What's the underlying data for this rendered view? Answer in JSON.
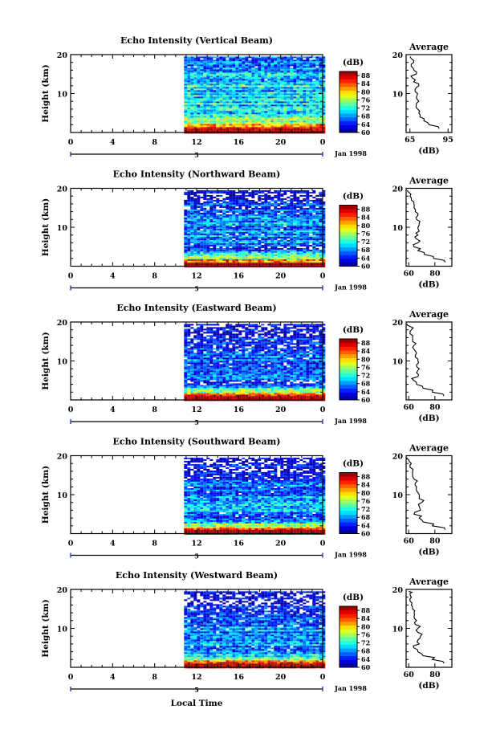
{
  "figure_xlabel": "Local Time",
  "chart_data": [
    {
      "type": "heatmap",
      "title": "Echo Intensity (Vertical Beam)",
      "ylabel": "Height (km)",
      "xlim": [
        0,
        24
      ],
      "ylim": [
        0,
        20
      ],
      "x_ticks": [
        "0",
        "4",
        "8",
        "12",
        "16",
        "20",
        "0"
      ],
      "y_ticks": [
        "10",
        "20"
      ],
      "date_label": "5",
      "month_label": "Jan 1998",
      "data_start_hour": 10.8,
      "data_top_km": 19.5,
      "colorbar": {
        "label": "(dB)",
        "ticks": [
          "88",
          "84",
          "80",
          "76",
          "72",
          "68",
          "64",
          "60"
        ],
        "min": 60,
        "max": 90
      },
      "profile": {
        "title": "Average",
        "xlabel": "(dB)",
        "x_ticks": [
          "65",
          "95"
        ],
        "xlim": [
          62,
          98
        ],
        "y_ticks": [
          "10",
          "20"
        ],
        "height_km": [
          1,
          2,
          3,
          4,
          5,
          6,
          7,
          8,
          9,
          10,
          11,
          12,
          13,
          14,
          15,
          16,
          17,
          18,
          19
        ],
        "values_db": [
          88,
          80,
          76,
          73,
          72,
          71,
          70,
          72,
          70,
          71,
          69,
          72,
          68,
          67,
          70,
          68,
          66,
          68,
          66
        ]
      }
    },
    {
      "type": "heatmap",
      "title": "Echo Intensity (Northward Beam)",
      "ylabel": "Height (km)",
      "xlim": [
        0,
        24
      ],
      "ylim": [
        0,
        20
      ],
      "x_ticks": [
        "0",
        "4",
        "8",
        "12",
        "16",
        "20",
        "0"
      ],
      "y_ticks": [
        "10",
        "20"
      ],
      "date_label": "5",
      "month_label": "Jan 1998",
      "data_start_hour": 10.8,
      "data_top_km": 19.5,
      "colorbar": {
        "label": "(dB)",
        "ticks": [
          "88",
          "84",
          "80",
          "76",
          "72",
          "68",
          "64",
          "60"
        ],
        "min": 60,
        "max": 90
      },
      "profile": {
        "title": "Average",
        "xlabel": "(dB)",
        "x_ticks": [
          "60",
          "80"
        ],
        "xlim": [
          58,
          93
        ],
        "y_ticks": [
          "10",
          "20"
        ],
        "height_km": [
          1,
          2,
          3,
          4,
          5,
          6,
          7,
          8,
          9,
          10,
          11,
          12,
          13,
          14,
          15,
          16,
          17,
          18,
          19
        ],
        "values_db": [
          88,
          79,
          72,
          67,
          64,
          67,
          66,
          67,
          68,
          67,
          68,
          66,
          67,
          65,
          64,
          64,
          62,
          61,
          60
        ]
      }
    },
    {
      "type": "heatmap",
      "title": "Echo Intensity (Eastward Beam)",
      "ylabel": "Height (km)",
      "xlim": [
        0,
        24
      ],
      "ylim": [
        0,
        20
      ],
      "x_ticks": [
        "0",
        "4",
        "8",
        "12",
        "16",
        "20",
        "0"
      ],
      "y_ticks": [
        "10",
        "20"
      ],
      "date_label": "5",
      "month_label": "Jan 1998",
      "data_start_hour": 10.8,
      "data_top_km": 19.5,
      "colorbar": {
        "label": "(dB)",
        "ticks": [
          "88",
          "84",
          "80",
          "76",
          "72",
          "68",
          "64",
          "60"
        ],
        "min": 60,
        "max": 90
      },
      "profile": {
        "title": "Average",
        "xlabel": "(dB)",
        "x_ticks": [
          "60",
          "80"
        ],
        "xlim": [
          58,
          93
        ],
        "y_ticks": [
          "10",
          "20"
        ],
        "height_km": [
          1,
          2,
          3,
          4,
          5,
          6,
          7,
          8,
          9,
          10,
          11,
          12,
          13,
          14,
          15,
          16,
          17,
          18,
          19
        ],
        "values_db": [
          87,
          78,
          71,
          66,
          64,
          67,
          66,
          68,
          66,
          67,
          65,
          66,
          64,
          64,
          63,
          63,
          61,
          62,
          60
        ]
      }
    },
    {
      "type": "heatmap",
      "title": "Echo Intensity (Southward Beam)",
      "ylabel": "Height (km)",
      "xlim": [
        0,
        24
      ],
      "ylim": [
        0,
        20
      ],
      "x_ticks": [
        "0",
        "4",
        "8",
        "12",
        "16",
        "20",
        "0"
      ],
      "y_ticks": [
        "10",
        "20"
      ],
      "date_label": "5",
      "month_label": "Jan 1998",
      "data_start_hour": 10.8,
      "data_top_km": 19.5,
      "colorbar": {
        "label": "(dB)",
        "ticks": [
          "88",
          "84",
          "80",
          "76",
          "72",
          "68",
          "64",
          "60"
        ],
        "min": 60,
        "max": 90
      },
      "profile": {
        "title": "Average",
        "xlabel": "(dB)",
        "x_ticks": [
          "60",
          "80"
        ],
        "xlim": [
          58,
          93
        ],
        "y_ticks": [
          "10",
          "20"
        ],
        "height_km": [
          1,
          2,
          3,
          4,
          5,
          6,
          7,
          8,
          9,
          10,
          11,
          12,
          13,
          14,
          15,
          16,
          17,
          18,
          19
        ],
        "values_db": [
          88,
          78,
          71,
          68,
          64,
          69,
          68,
          70,
          68,
          68,
          66,
          66,
          65,
          64,
          63,
          63,
          61,
          62,
          60
        ]
      }
    },
    {
      "type": "heatmap",
      "title": "Echo Intensity (Westward Beam)",
      "ylabel": "Height (km)",
      "xlim": [
        0,
        24
      ],
      "ylim": [
        0,
        20
      ],
      "x_ticks": [
        "0",
        "4",
        "8",
        "12",
        "16",
        "20",
        "0"
      ],
      "y_ticks": [
        "10",
        "20"
      ],
      "date_label": "5",
      "month_label": "Jan 1998",
      "data_start_hour": 10.8,
      "data_top_km": 19.5,
      "colorbar": {
        "label": "(dB)",
        "ticks": [
          "88",
          "84",
          "80",
          "76",
          "72",
          "68",
          "64",
          "60"
        ],
        "min": 60,
        "max": 90
      },
      "profile": {
        "title": "Average",
        "xlabel": "(dB)",
        "x_ticks": [
          "60",
          "80"
        ],
        "xlim": [
          58,
          93
        ],
        "y_ticks": [
          "10",
          "20"
        ],
        "height_km": [
          1,
          2,
          3,
          4,
          5,
          6,
          7,
          8,
          9,
          10,
          11,
          12,
          13,
          14,
          15,
          16,
          17,
          18,
          19
        ],
        "values_db": [
          87,
          78,
          71,
          67,
          64,
          68,
          67,
          69,
          67,
          67,
          65,
          66,
          64,
          64,
          63,
          62,
          61,
          62,
          61
        ]
      }
    }
  ]
}
